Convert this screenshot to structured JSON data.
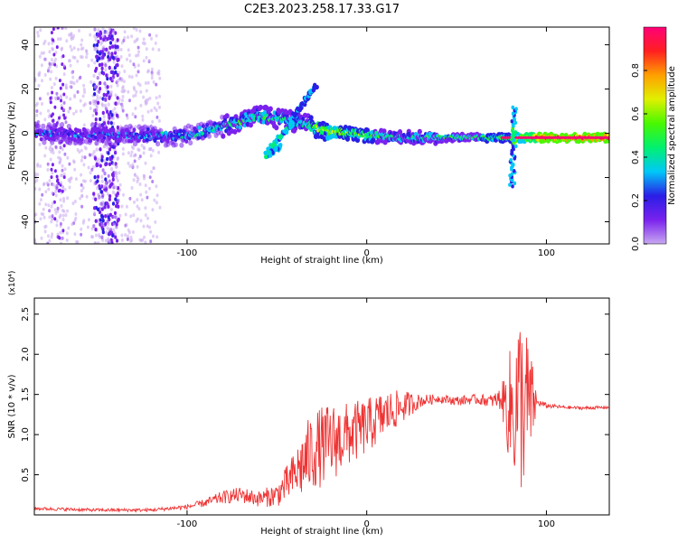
{
  "figure": {
    "title": "C2E3.2023.258.17.33.G17"
  },
  "chart_data": [
    {
      "type": "heatmap",
      "panel": "top",
      "xlabel": "Height of straight line (km)",
      "ylabel": "Frequency (Hz)",
      "xlim": [
        -185,
        135
      ],
      "ylim": [
        -50,
        48
      ],
      "xticks": [
        -100,
        0,
        100
      ],
      "yticks": [
        -40,
        -20,
        0,
        20,
        40
      ],
      "grid": false,
      "colorbar": {
        "label": "Normalized spectral amplitude",
        "range": [
          0.0,
          1.0
        ],
        "ticks": [
          0.0,
          0.2,
          0.4,
          0.6,
          0.8
        ],
        "tick_labels": [
          "0.0",
          "0.2",
          "0.4",
          "0.6",
          "0.8"
        ],
        "colors": [
          "#c8a8f0",
          "#7a22ee",
          "#2a1ee6",
          "#00c8f8",
          "#00f070",
          "#48f800",
          "#e0f000",
          "#ffa000",
          "#ff2020",
          "#ff0078"
        ]
      },
      "ridge": [
        {
          "x": -185,
          "f": 0,
          "amp": 0.25
        },
        {
          "x": -130,
          "f": -1,
          "amp": 0.25
        },
        {
          "x": -100,
          "f": -1,
          "amp": 0.35
        },
        {
          "x": -80,
          "f": 3,
          "amp": 0.4
        },
        {
          "x": -60,
          "f": 8,
          "amp": 0.45
        },
        {
          "x": -40,
          "f": 5,
          "amp": 0.4
        },
        {
          "x": -20,
          "f": 1,
          "amp": 0.6
        },
        {
          "x": 0,
          "f": -1,
          "amp": 0.5
        },
        {
          "x": 20,
          "f": -2,
          "amp": 0.4
        },
        {
          "x": 75,
          "f": -2,
          "amp": 0.5
        },
        {
          "x": 100,
          "f": -2,
          "amp": 0.85
        },
        {
          "x": 135,
          "f": -2,
          "amp": 0.85
        }
      ]
    },
    {
      "type": "line",
      "panel": "bottom",
      "xlabel": "Height of straight line (km)",
      "ylabel": "SNR (10 * v/v)",
      "multiplier": "(x10⁴)",
      "xlim": [
        -185,
        135
      ],
      "ylim": [
        0,
        2.7
      ],
      "xticks": [
        -100,
        0,
        100
      ],
      "yticks": [
        0.5,
        1.0,
        1.5,
        2.0,
        2.5
      ],
      "ytick_labels": [
        "0.5",
        "1.0",
        "1.5",
        "2.0",
        "2.5"
      ],
      "grid": false,
      "series": [
        {
          "color": "#ee3333",
          "x": [
            -185,
            -150,
            -120,
            -100,
            -90,
            -80,
            -70,
            -60,
            -50,
            -40,
            -35,
            -30,
            -20,
            -10,
            0,
            10,
            20,
            30,
            40,
            50,
            60,
            70,
            75,
            80,
            85,
            90,
            95,
            100,
            110,
            120,
            135
          ],
          "y": [
            0.08,
            0.06,
            0.06,
            0.1,
            0.15,
            0.22,
            0.25,
            0.2,
            0.25,
            0.5,
            0.65,
            0.8,
            0.9,
            1.0,
            1.1,
            1.25,
            1.35,
            1.42,
            1.45,
            1.42,
            1.44,
            1.42,
            1.45,
            1.3,
            1.4,
            1.35,
            1.4,
            1.36,
            1.34,
            1.33,
            1.34
          ],
          "noise": [
            0.02,
            0.02,
            0.02,
            0.03,
            0.05,
            0.08,
            0.1,
            0.1,
            0.15,
            0.3,
            0.45,
            0.5,
            0.5,
            0.4,
            0.35,
            0.3,
            0.2,
            0.08,
            0.05,
            0.06,
            0.06,
            0.08,
            0.15,
            0.8,
            1.2,
            0.9,
            0.05,
            0.03,
            0.02,
            0.02,
            0.02
          ]
        }
      ]
    }
  ]
}
